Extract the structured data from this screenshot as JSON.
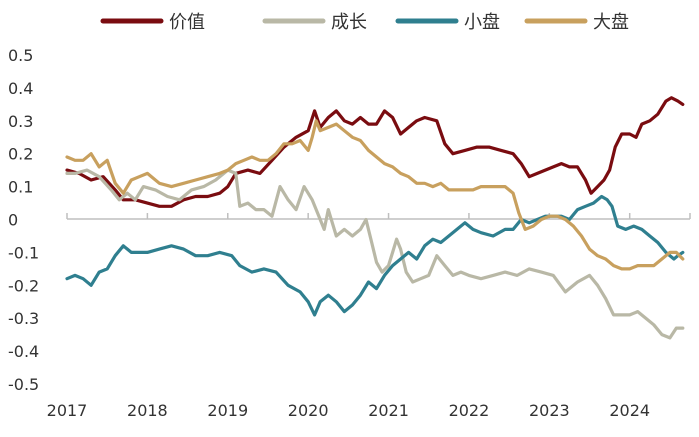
{
  "chart_data": {
    "type": "line",
    "title": "",
    "xlabel": "",
    "ylabel": "",
    "x_range": [
      2017.0,
      2024.75
    ],
    "ylim": [
      -0.5,
      0.5
    ],
    "y_ticks": [
      0.5,
      0.4,
      0.3,
      0.2,
      0.1,
      0,
      -0.1,
      -0.2,
      -0.3,
      -0.4,
      -0.5
    ],
    "y_tick_labels": [
      "0.5",
      "0.4",
      "0.3",
      "0.2",
      "0.1",
      "0",
      "-0.1",
      "-0.2",
      "-0.3",
      "-0.4",
      "-0.5"
    ],
    "x_ticks": [
      2017,
      2018,
      2019,
      2020,
      2021,
      2022,
      2023,
      2024
    ],
    "x_tick_labels": [
      "2017",
      "2018",
      "2019",
      "2020",
      "2021",
      "2022",
      "2023",
      "2024"
    ],
    "grid": false,
    "legend_position": "top",
    "series": [
      {
        "name": "价值",
        "color": "#7a0c10",
        "points": [
          [
            2017.0,
            0.15
          ],
          [
            2017.15,
            0.14
          ],
          [
            2017.3,
            0.12
          ],
          [
            2017.45,
            0.13
          ],
          [
            2017.6,
            0.09
          ],
          [
            2017.7,
            0.06
          ],
          [
            2017.85,
            0.06
          ],
          [
            2018.0,
            0.05
          ],
          [
            2018.15,
            0.04
          ],
          [
            2018.3,
            0.04
          ],
          [
            2018.45,
            0.06
          ],
          [
            2018.6,
            0.07
          ],
          [
            2018.75,
            0.07
          ],
          [
            2018.9,
            0.08
          ],
          [
            2019.0,
            0.1
          ],
          [
            2019.1,
            0.14
          ],
          [
            2019.25,
            0.15
          ],
          [
            2019.4,
            0.14
          ],
          [
            2019.55,
            0.18
          ],
          [
            2019.7,
            0.22
          ],
          [
            2019.85,
            0.25
          ],
          [
            2020.0,
            0.27
          ],
          [
            2020.08,
            0.33
          ],
          [
            2020.15,
            0.28
          ],
          [
            2020.25,
            0.31
          ],
          [
            2020.35,
            0.33
          ],
          [
            2020.45,
            0.3
          ],
          [
            2020.55,
            0.29
          ],
          [
            2020.65,
            0.31
          ],
          [
            2020.75,
            0.29
          ],
          [
            2020.85,
            0.29
          ],
          [
            2020.95,
            0.33
          ],
          [
            2021.05,
            0.31
          ],
          [
            2021.15,
            0.26
          ],
          [
            2021.25,
            0.28
          ],
          [
            2021.35,
            0.3
          ],
          [
            2021.45,
            0.31
          ],
          [
            2021.6,
            0.3
          ],
          [
            2021.7,
            0.23
          ],
          [
            2021.8,
            0.2
          ],
          [
            2021.95,
            0.21
          ],
          [
            2022.1,
            0.22
          ],
          [
            2022.25,
            0.22
          ],
          [
            2022.4,
            0.21
          ],
          [
            2022.55,
            0.2
          ],
          [
            2022.65,
            0.17
          ],
          [
            2022.75,
            0.13
          ],
          [
            2022.85,
            0.14
          ],
          [
            2022.95,
            0.15
          ],
          [
            2023.05,
            0.16
          ],
          [
            2023.15,
            0.17
          ],
          [
            2023.25,
            0.16
          ],
          [
            2023.35,
            0.16
          ],
          [
            2023.45,
            0.12
          ],
          [
            2023.52,
            0.08
          ],
          [
            2023.6,
            0.1
          ],
          [
            2023.68,
            0.12
          ],
          [
            2023.75,
            0.15
          ],
          [
            2023.82,
            0.22
          ],
          [
            2023.9,
            0.26
          ],
          [
            2024.0,
            0.26
          ],
          [
            2024.08,
            0.25
          ],
          [
            2024.15,
            0.29
          ],
          [
            2024.25,
            0.3
          ],
          [
            2024.35,
            0.32
          ],
          [
            2024.45,
            0.36
          ],
          [
            2024.52,
            0.37
          ],
          [
            2024.6,
            0.36
          ],
          [
            2024.66,
            0.35
          ]
        ]
      },
      {
        "name": "成长",
        "color": "#b9b8a6",
        "points": [
          [
            2017.0,
            0.14
          ],
          [
            2017.1,
            0.14
          ],
          [
            2017.25,
            0.15
          ],
          [
            2017.4,
            0.13
          ],
          [
            2017.55,
            0.09
          ],
          [
            2017.65,
            0.06
          ],
          [
            2017.75,
            0.08
          ],
          [
            2017.85,
            0.06
          ],
          [
            2017.95,
            0.1
          ],
          [
            2018.1,
            0.09
          ],
          [
            2018.25,
            0.07
          ],
          [
            2018.4,
            0.06
          ],
          [
            2018.55,
            0.09
          ],
          [
            2018.7,
            0.1
          ],
          [
            2018.85,
            0.12
          ],
          [
            2019.0,
            0.15
          ],
          [
            2019.1,
            0.14
          ],
          [
            2019.15,
            0.04
          ],
          [
            2019.25,
            0.05
          ],
          [
            2019.35,
            0.03
          ],
          [
            2019.45,
            0.03
          ],
          [
            2019.55,
            0.01
          ],
          [
            2019.65,
            0.1
          ],
          [
            2019.75,
            0.06
          ],
          [
            2019.85,
            0.03
          ],
          [
            2019.95,
            0.1
          ],
          [
            2020.05,
            0.06
          ],
          [
            2020.15,
            0.0
          ],
          [
            2020.2,
            -0.03
          ],
          [
            2020.25,
            0.03
          ],
          [
            2020.35,
            -0.05
          ],
          [
            2020.45,
            -0.03
          ],
          [
            2020.55,
            -0.05
          ],
          [
            2020.65,
            -0.03
          ],
          [
            2020.72,
            0.0
          ],
          [
            2020.78,
            -0.06
          ],
          [
            2020.85,
            -0.13
          ],
          [
            2020.92,
            -0.16
          ],
          [
            2021.0,
            -0.14
          ],
          [
            2021.05,
            -0.1
          ],
          [
            2021.1,
            -0.06
          ],
          [
            2021.15,
            -0.09
          ],
          [
            2021.22,
            -0.16
          ],
          [
            2021.3,
            -0.19
          ],
          [
            2021.4,
            -0.18
          ],
          [
            2021.5,
            -0.17
          ],
          [
            2021.6,
            -0.11
          ],
          [
            2021.7,
            -0.14
          ],
          [
            2021.8,
            -0.17
          ],
          [
            2021.9,
            -0.16
          ],
          [
            2022.0,
            -0.17
          ],
          [
            2022.15,
            -0.18
          ],
          [
            2022.3,
            -0.17
          ],
          [
            2022.45,
            -0.16
          ],
          [
            2022.6,
            -0.17
          ],
          [
            2022.75,
            -0.15
          ],
          [
            2022.9,
            -0.16
          ],
          [
            2023.05,
            -0.17
          ],
          [
            2023.2,
            -0.22
          ],
          [
            2023.35,
            -0.19
          ],
          [
            2023.5,
            -0.17
          ],
          [
            2023.6,
            -0.2
          ],
          [
            2023.7,
            -0.24
          ],
          [
            2023.8,
            -0.29
          ],
          [
            2023.9,
            -0.29
          ],
          [
            2024.0,
            -0.29
          ],
          [
            2024.1,
            -0.28
          ],
          [
            2024.2,
            -0.3
          ],
          [
            2024.3,
            -0.32
          ],
          [
            2024.4,
            -0.35
          ],
          [
            2024.5,
            -0.36
          ],
          [
            2024.58,
            -0.33
          ],
          [
            2024.66,
            -0.33
          ]
        ]
      },
      {
        "name": "小盘",
        "color": "#2f7f8f",
        "points": [
          [
            2017.0,
            -0.18
          ],
          [
            2017.1,
            -0.17
          ],
          [
            2017.2,
            -0.18
          ],
          [
            2017.3,
            -0.2
          ],
          [
            2017.4,
            -0.16
          ],
          [
            2017.5,
            -0.15
          ],
          [
            2017.6,
            -0.11
          ],
          [
            2017.7,
            -0.08
          ],
          [
            2017.8,
            -0.1
          ],
          [
            2017.9,
            -0.1
          ],
          [
            2018.0,
            -0.1
          ],
          [
            2018.15,
            -0.09
          ],
          [
            2018.3,
            -0.08
          ],
          [
            2018.45,
            -0.09
          ],
          [
            2018.6,
            -0.11
          ],
          [
            2018.75,
            -0.11
          ],
          [
            2018.9,
            -0.1
          ],
          [
            2019.05,
            -0.11
          ],
          [
            2019.15,
            -0.14
          ],
          [
            2019.3,
            -0.16
          ],
          [
            2019.45,
            -0.15
          ],
          [
            2019.6,
            -0.16
          ],
          [
            2019.75,
            -0.2
          ],
          [
            2019.9,
            -0.22
          ],
          [
            2020.0,
            -0.25
          ],
          [
            2020.08,
            -0.29
          ],
          [
            2020.15,
            -0.25
          ],
          [
            2020.25,
            -0.23
          ],
          [
            2020.35,
            -0.25
          ],
          [
            2020.45,
            -0.28
          ],
          [
            2020.55,
            -0.26
          ],
          [
            2020.65,
            -0.23
          ],
          [
            2020.75,
            -0.19
          ],
          [
            2020.85,
            -0.21
          ],
          [
            2020.95,
            -0.17
          ],
          [
            2021.05,
            -0.14
          ],
          [
            2021.15,
            -0.12
          ],
          [
            2021.25,
            -0.1
          ],
          [
            2021.35,
            -0.12
          ],
          [
            2021.45,
            -0.08
          ],
          [
            2021.55,
            -0.06
          ],
          [
            2021.65,
            -0.07
          ],
          [
            2021.75,
            -0.05
          ],
          [
            2021.85,
            -0.03
          ],
          [
            2021.95,
            -0.01
          ],
          [
            2022.05,
            -0.03
          ],
          [
            2022.15,
            -0.04
          ],
          [
            2022.3,
            -0.05
          ],
          [
            2022.45,
            -0.03
          ],
          [
            2022.55,
            -0.03
          ],
          [
            2022.65,
            0.0
          ],
          [
            2022.75,
            -0.01
          ],
          [
            2022.85,
            0.0
          ],
          [
            2022.95,
            0.01
          ],
          [
            2023.05,
            0.01
          ],
          [
            2023.15,
            0.01
          ],
          [
            2023.25,
            0.0
          ],
          [
            2023.35,
            0.03
          ],
          [
            2023.45,
            0.04
          ],
          [
            2023.55,
            0.05
          ],
          [
            2023.65,
            0.07
          ],
          [
            2023.72,
            0.06
          ],
          [
            2023.78,
            0.04
          ],
          [
            2023.85,
            -0.02
          ],
          [
            2023.95,
            -0.03
          ],
          [
            2024.05,
            -0.02
          ],
          [
            2024.15,
            -0.03
          ],
          [
            2024.25,
            -0.05
          ],
          [
            2024.35,
            -0.07
          ],
          [
            2024.45,
            -0.1
          ],
          [
            2024.55,
            -0.12
          ],
          [
            2024.6,
            -0.11
          ],
          [
            2024.66,
            -0.1
          ]
        ]
      },
      {
        "name": "大盘",
        "color": "#c8a05e",
        "points": [
          [
            2017.0,
            0.19
          ],
          [
            2017.1,
            0.18
          ],
          [
            2017.2,
            0.18
          ],
          [
            2017.3,
            0.2
          ],
          [
            2017.4,
            0.16
          ],
          [
            2017.5,
            0.18
          ],
          [
            2017.6,
            0.11
          ],
          [
            2017.7,
            0.08
          ],
          [
            2017.8,
            0.12
          ],
          [
            2017.9,
            0.13
          ],
          [
            2018.0,
            0.14
          ],
          [
            2018.15,
            0.11
          ],
          [
            2018.3,
            0.1
          ],
          [
            2018.45,
            0.11
          ],
          [
            2018.6,
            0.12
          ],
          [
            2018.75,
            0.13
          ],
          [
            2018.9,
            0.14
          ],
          [
            2019.0,
            0.15
          ],
          [
            2019.1,
            0.17
          ],
          [
            2019.2,
            0.18
          ],
          [
            2019.3,
            0.19
          ],
          [
            2019.4,
            0.18
          ],
          [
            2019.5,
            0.18
          ],
          [
            2019.6,
            0.2
          ],
          [
            2019.7,
            0.23
          ],
          [
            2019.8,
            0.23
          ],
          [
            2019.9,
            0.24
          ],
          [
            2020.0,
            0.21
          ],
          [
            2020.05,
            0.25
          ],
          [
            2020.1,
            0.3
          ],
          [
            2020.15,
            0.27
          ],
          [
            2020.25,
            0.28
          ],
          [
            2020.35,
            0.29
          ],
          [
            2020.45,
            0.27
          ],
          [
            2020.55,
            0.25
          ],
          [
            2020.65,
            0.24
          ],
          [
            2020.75,
            0.21
          ],
          [
            2020.85,
            0.19
          ],
          [
            2020.95,
            0.17
          ],
          [
            2021.05,
            0.16
          ],
          [
            2021.15,
            0.14
          ],
          [
            2021.25,
            0.13
          ],
          [
            2021.35,
            0.11
          ],
          [
            2021.45,
            0.11
          ],
          [
            2021.55,
            0.1
          ],
          [
            2021.65,
            0.11
          ],
          [
            2021.75,
            0.09
          ],
          [
            2021.85,
            0.09
          ],
          [
            2021.95,
            0.09
          ],
          [
            2022.05,
            0.09
          ],
          [
            2022.15,
            0.1
          ],
          [
            2022.3,
            0.1
          ],
          [
            2022.45,
            0.1
          ],
          [
            2022.55,
            0.08
          ],
          [
            2022.62,
            0.02
          ],
          [
            2022.7,
            -0.03
          ],
          [
            2022.8,
            -0.02
          ],
          [
            2022.9,
            0.0
          ],
          [
            2023.0,
            0.01
          ],
          [
            2023.1,
            0.01
          ],
          [
            2023.2,
            0.0
          ],
          [
            2023.3,
            -0.02
          ],
          [
            2023.4,
            -0.05
          ],
          [
            2023.5,
            -0.09
          ],
          [
            2023.6,
            -0.11
          ],
          [
            2023.7,
            -0.12
          ],
          [
            2023.8,
            -0.14
          ],
          [
            2023.9,
            -0.15
          ],
          [
            2024.0,
            -0.15
          ],
          [
            2024.1,
            -0.14
          ],
          [
            2024.2,
            -0.14
          ],
          [
            2024.3,
            -0.14
          ],
          [
            2024.4,
            -0.12
          ],
          [
            2024.5,
            -0.1
          ],
          [
            2024.58,
            -0.1
          ],
          [
            2024.66,
            -0.12
          ]
        ]
      }
    ]
  }
}
